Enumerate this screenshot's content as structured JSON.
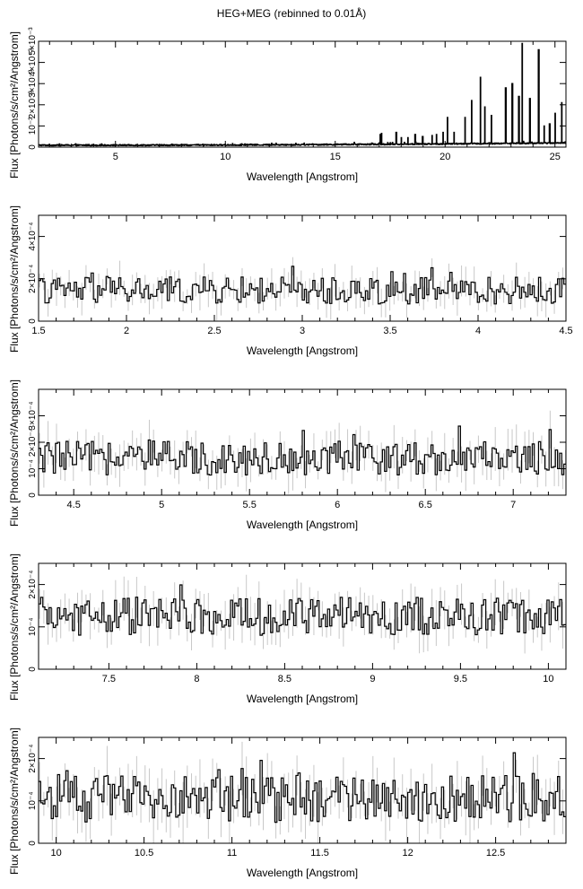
{
  "title": "HEG+MEG (rebinned to 0.01Å)",
  "chart_data": [
    {
      "type": "line",
      "title": "HEG+MEG (rebinned to 0.01Å)",
      "xlabel": "Wavelength [Angstrom]",
      "ylabel": "Flux [Photons/s/cm²/Angstrom]",
      "xlim": [
        1.5,
        25.5
      ],
      "ylim": [
        0,
        0.005
      ],
      "xticks": [
        5,
        10,
        15,
        20,
        25
      ],
      "yticks": [
        0,
        0.001,
        0.002,
        0.003,
        0.004,
        0.005
      ],
      "ytick_labels": [
        "0",
        "10⁻³",
        "2×10⁻³",
        "3×10⁻³",
        "4×10⁻³",
        "5×10⁻³"
      ],
      "baseline": 0.00013,
      "noise": 4e-05,
      "lines": [
        [
          17.05,
          0.0006
        ],
        [
          17.1,
          0.00065
        ],
        [
          17.77,
          0.0007
        ],
        [
          18.0,
          0.00045
        ],
        [
          18.3,
          0.00045
        ],
        [
          18.63,
          0.0006
        ],
        [
          18.97,
          0.0005
        ],
        [
          19.4,
          0.00055
        ],
        [
          19.6,
          0.0006
        ],
        [
          19.9,
          0.0007
        ],
        [
          20.1,
          0.0014
        ],
        [
          20.4,
          0.0007
        ],
        [
          20.9,
          0.0014
        ],
        [
          21.2,
          0.0022
        ],
        [
          21.6,
          0.0033
        ],
        [
          21.8,
          0.0019
        ],
        [
          22.1,
          0.0015
        ],
        [
          22.75,
          0.0028
        ],
        [
          23.05,
          0.003
        ],
        [
          23.35,
          0.0024
        ],
        [
          23.5,
          0.0049
        ],
        [
          23.85,
          0.0023
        ],
        [
          24.25,
          0.0046
        ],
        [
          24.5,
          0.001
        ],
        [
          24.75,
          0.0011
        ],
        [
          25.0,
          0.0016
        ],
        [
          25.3,
          0.0021
        ]
      ]
    },
    {
      "type": "line",
      "xlabel": "Wavelength [Angstrom]",
      "ylabel": "Flux [Photons/s/cm²/Angstrom]",
      "xlim": [
        1.5,
        4.5
      ],
      "ylim": [
        0,
        0.0005
      ],
      "xticks": [
        1.5,
        2,
        2.5,
        3,
        3.5,
        4,
        4.5
      ],
      "yticks": [
        0,
        0.0002,
        0.0004
      ],
      "ytick_labels": [
        "0",
        "2×10⁻⁴",
        "4×10⁻⁴"
      ],
      "baseline": 0.000145,
      "noise": 4e-05
    },
    {
      "type": "line",
      "xlabel": "Wavelength [Angstrom]",
      "ylabel": "Flux [Photons/s/cm²/Angstrom]",
      "xlim": [
        4.3,
        7.3
      ],
      "ylim": [
        0,
        0.0004
      ],
      "xticks": [
        4.5,
        5,
        5.5,
        6,
        6.5,
        7
      ],
      "yticks": [
        0,
        0.0001,
        0.0002,
        0.0003
      ],
      "ytick_labels": [
        "0",
        "10⁻⁴",
        "2×10⁻⁴",
        "3×10⁻⁴"
      ],
      "baseline": 0.00014,
      "noise": 4e-05
    },
    {
      "type": "line",
      "xlabel": "Wavelength [Angstrom]",
      "ylabel": "Flux [Photons/s/cm²/Angstrom]",
      "xlim": [
        7.1,
        10.1
      ],
      "ylim": [
        0,
        0.00025
      ],
      "xticks": [
        7.5,
        8,
        8.5,
        9,
        9.5,
        10
      ],
      "yticks": [
        0,
        0.0001,
        0.0002
      ],
      "ytick_labels": [
        "0",
        "10⁻⁴",
        "2×10⁻⁴"
      ],
      "baseline": 0.000125,
      "noise": 2.8e-05
    },
    {
      "type": "line",
      "xlabel": "Wavelength [Angstrom]",
      "ylabel": "Flux [Photons/s/cm²/Angstrom]",
      "xlim": [
        9.9,
        12.9
      ],
      "ylim": [
        0,
        0.00025
      ],
      "xticks": [
        10,
        10.5,
        11,
        11.5,
        12,
        12.5
      ],
      "yticks": [
        0,
        0.0001,
        0.0002
      ],
      "ytick_labels": [
        "0",
        "10⁻⁴",
        "2×10⁻⁴"
      ],
      "baseline": 0.000105,
      "noise": 3.5e-05
    }
  ]
}
